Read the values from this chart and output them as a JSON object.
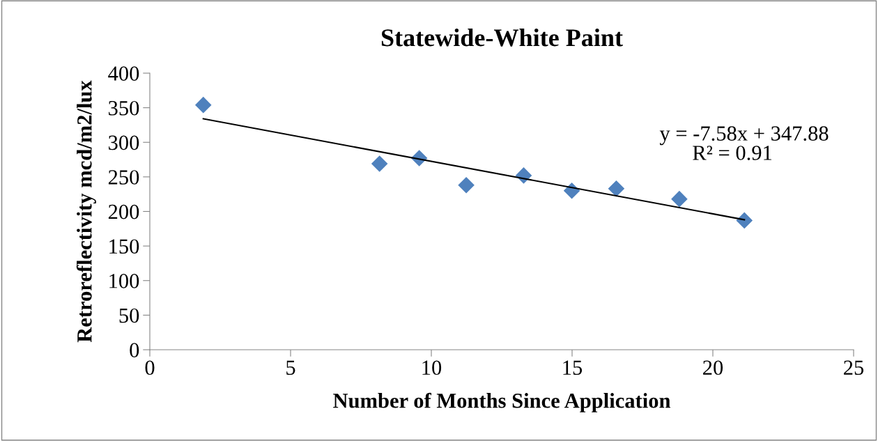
{
  "chart_data": {
    "type": "scatter",
    "title": "Statewide-White Paint",
    "xlabel": "Number of Months Since Application",
    "ylabel": "Retroreflectivity mcd/m2/lux",
    "series": [
      {
        "color": "#4f81bd",
        "marker": "diamond",
        "x": [
          1.9,
          8.16,
          9.57,
          11.24,
          13.28,
          14.99,
          16.57,
          18.81,
          21.12
        ],
        "values": [
          354,
          269,
          277,
          238,
          252,
          230,
          233,
          218,
          187
        ]
      },
      {
        "type": "line",
        "color": "#000000",
        "marker": "none",
        "x": [
          1.9,
          21.12
        ],
        "values": [
          334,
          188
        ]
      }
    ],
    "xlim": [
      0,
      25
    ],
    "xticks": [
      0,
      5,
      10,
      15,
      20,
      25
    ],
    "ylim": [
      0,
      400
    ],
    "yticks": [
      0,
      50,
      100,
      150,
      200,
      250,
      300,
      350,
      400
    ],
    "grid": false,
    "legend": false,
    "annotations": [
      "y = -7.58x + 347.88",
      "R² = 0.91"
    ]
  }
}
